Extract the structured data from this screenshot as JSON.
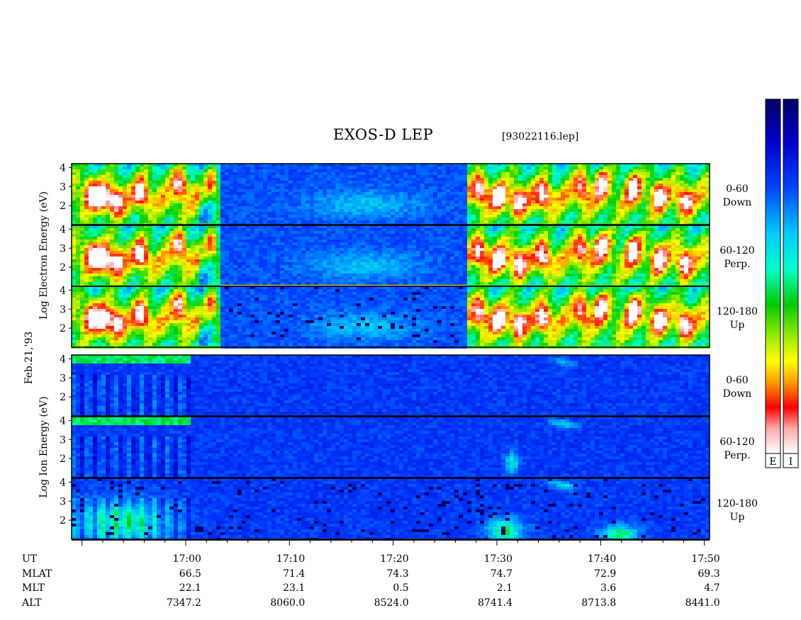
{
  "title": "EXOS-D LEP",
  "file": "[93022116.lep]",
  "date_label": "Feb.21,'93",
  "chart_data": {
    "type": "heatmap",
    "panel_groups": [
      {
        "name": "Electron",
        "ylabel": "Log  Electron  Energy (eV)",
        "panels": [
          {
            "label1": "0-60",
            "label2": "Down"
          },
          {
            "label1": "60-120",
            "label2": "Perp."
          },
          {
            "label1": "120-180",
            "label2": "Up"
          }
        ]
      },
      {
        "name": "Ion",
        "ylabel": "Log  Ion  Energy (eV)",
        "panels": [
          {
            "label1": "0-60",
            "label2": "Down"
          },
          {
            "label1": "60-120",
            "label2": "Perp."
          },
          {
            "label1": "120-180",
            "label2": "Up"
          }
        ]
      }
    ],
    "y_ticks": [
      "4",
      "3",
      "2"
    ],
    "ylim": [
      1,
      4.2
    ],
    "x_range_minutes": [
      -11,
      50.5
    ],
    "colorbar_labels": [
      "E",
      "I"
    ],
    "colorbar_colors": [
      "#000066",
      "#0000ff",
      "#00ffff",
      "#00cc00",
      "#ffff00",
      "#ff8800",
      "#ff0000",
      "#ffffff"
    ],
    "orbit_table": {
      "rows": [
        {
          "name": "UT",
          "values": [
            "17:00",
            "17:10",
            "17:20",
            "17:30",
            "17:40",
            "17:50"
          ]
        },
        {
          "name": "MLAT",
          "values": [
            "66.5",
            "71.4",
            "74.3",
            "74.7",
            "72.9",
            "69.3"
          ]
        },
        {
          "name": "MLT",
          "values": [
            "22.1",
            "23.1",
            "0.5",
            "2.1",
            "3.6",
            "4.7"
          ]
        },
        {
          "name": "ALT",
          "values": [
            "7347.2",
            "8060.0",
            "8524.0",
            "8741.4",
            "8713.8",
            "8441.0"
          ]
        }
      ]
    }
  }
}
